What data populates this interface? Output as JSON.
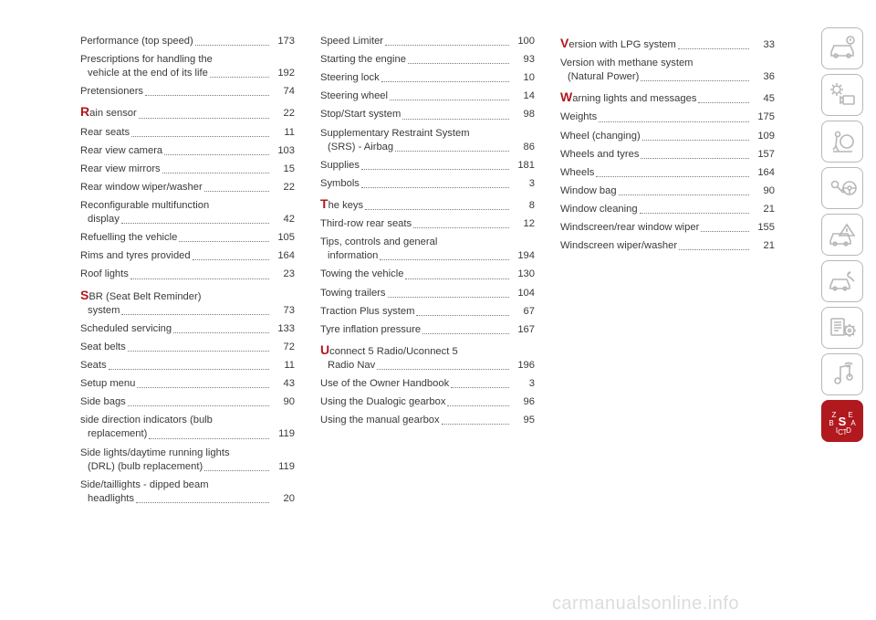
{
  "accent_color": "#b0191e",
  "text_color": "#3a3a3a",
  "border_color": "#b7b7b7",
  "watermark": "carmanualsonline.info",
  "columns": [
    {
      "entries": [
        {
          "label": "Performance (top speed)",
          "page": "173"
        },
        {
          "label": "Prescriptions for handling the",
          "cont": "vehicle at the end of its life",
          "page": "192"
        },
        {
          "label": "Pretensioners",
          "page": "74"
        },
        {
          "dropcap": "R",
          "label": "ain sensor",
          "page": "22"
        },
        {
          "label": "Rear seats",
          "page": "11"
        },
        {
          "label": "Rear view camera",
          "page": "103"
        },
        {
          "label": "Rear view mirrors",
          "page": "15"
        },
        {
          "label": "Rear window wiper/washer",
          "page": "22"
        },
        {
          "label": "Reconfigurable multifunction",
          "cont": "display",
          "page": "42"
        },
        {
          "label": "Refuelling the vehicle",
          "page": "105"
        },
        {
          "label": "Rims and tyres provided",
          "page": "164"
        },
        {
          "label": "Roof lights",
          "page": "23"
        },
        {
          "dropcap": "S",
          "label": "BR (Seat Belt Reminder)",
          "cont": "system",
          "page": "73"
        },
        {
          "label": "Scheduled servicing",
          "page": "133"
        },
        {
          "label": "Seat belts",
          "page": "72"
        },
        {
          "label": "Seats",
          "page": "11"
        },
        {
          "label": "Setup menu",
          "page": "43"
        },
        {
          "label": "Side bags",
          "page": "90"
        },
        {
          "label": "side direction indicators (bulb",
          "cont": "replacement)",
          "page": "119"
        },
        {
          "label": "Side lights/daytime running lights",
          "cont": "(DRL) (bulb replacement)",
          "page": "119"
        },
        {
          "label": "Side/taillights - dipped beam",
          "cont": "headlights",
          "page": "20"
        }
      ]
    },
    {
      "entries": [
        {
          "label": "Speed Limiter",
          "page": "100"
        },
        {
          "label": "Starting the engine",
          "page": "93"
        },
        {
          "label": "Steering lock",
          "page": "10"
        },
        {
          "label": "Steering wheel",
          "page": "14"
        },
        {
          "label": "Stop/Start system",
          "page": "98"
        },
        {
          "label": "Supplementary Restraint System",
          "cont": "(SRS) - Airbag",
          "page": "86"
        },
        {
          "label": "Supplies",
          "page": "181"
        },
        {
          "label": "Symbols",
          "page": "3"
        },
        {
          "dropcap": "T",
          "label": "he keys",
          "page": "8"
        },
        {
          "label": "Third-row rear seats",
          "page": "12"
        },
        {
          "label": "Tips, controls and general",
          "cont": "information",
          "page": "194"
        },
        {
          "label": "Towing the vehicle",
          "page": "130"
        },
        {
          "label": "Towing trailers",
          "page": "104"
        },
        {
          "label": "Traction Plus system",
          "page": "67"
        },
        {
          "label": "Tyre inflation pressure",
          "page": "167"
        },
        {
          "dropcap": "U",
          "label": "connect 5 Radio/Uconnect 5",
          "cont": "Radio Nav",
          "page": "196"
        },
        {
          "label": "Use of the Owner Handbook",
          "page": "3"
        },
        {
          "label": "Using the Dualogic gearbox",
          "page": "96"
        },
        {
          "label": "Using the manual gearbox",
          "page": "95"
        }
      ]
    },
    {
      "entries": [
        {
          "dropcap": "V",
          "label": "ersion with LPG system",
          "page": "33"
        },
        {
          "label": "Version with methane system",
          "cont": "(Natural Power)",
          "page": "36"
        },
        {
          "dropcap": "W",
          "label": "arning lights and messages",
          "page": "45"
        },
        {
          "label": "Weights",
          "page": "175"
        },
        {
          "label": "Wheel (changing)",
          "page": "109"
        },
        {
          "label": "Wheels and tyres",
          "page": "157"
        },
        {
          "label": "Wheels",
          "page": "164"
        },
        {
          "label": "Window bag",
          "page": "90"
        },
        {
          "label": "Window cleaning",
          "page": "21"
        },
        {
          "label": "Windscreen/rear window wiper",
          "page": "155"
        },
        {
          "label": "Windscreen wiper/washer",
          "page": "21"
        }
      ]
    }
  ],
  "tabs": [
    {
      "name": "info-car",
      "active": false
    },
    {
      "name": "lights",
      "active": false
    },
    {
      "name": "airbag",
      "active": false
    },
    {
      "name": "key-wheel",
      "active": false
    },
    {
      "name": "warning",
      "active": false
    },
    {
      "name": "service",
      "active": false
    },
    {
      "name": "specs",
      "active": false
    },
    {
      "name": "media",
      "active": false
    },
    {
      "name": "index",
      "active": true
    }
  ]
}
